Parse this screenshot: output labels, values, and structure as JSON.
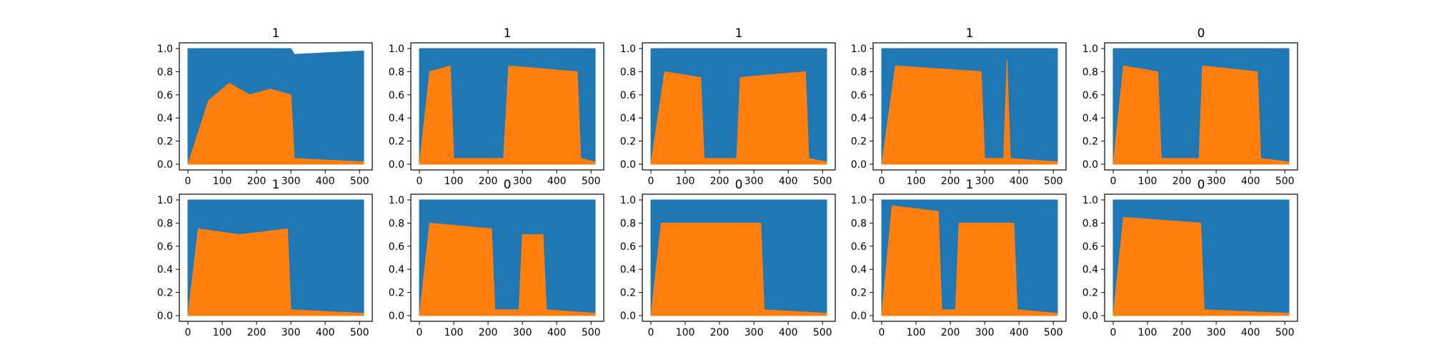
{
  "chart_data": [
    {
      "type": "area",
      "title": "1",
      "xlim": [
        0,
        512
      ],
      "ylim": [
        0,
        1
      ],
      "xticks": [
        "0",
        "100",
        "200",
        "300",
        "400",
        "500"
      ],
      "yticks": [
        "0.0",
        "0.2",
        "0.4",
        "0.6",
        "0.8",
        "1.0"
      ],
      "series": [
        {
          "color": "#ff7f0e",
          "points": [
            [
              0,
              0.0
            ],
            [
              60,
              0.55
            ],
            [
              120,
              0.7
            ],
            [
              180,
              0.6
            ],
            [
              240,
              0.65
            ],
            [
              300,
              0.6
            ],
            [
              310,
              0.05
            ],
            [
              512,
              0.02
            ]
          ]
        },
        {
          "color": "#1f77b4",
          "points": [
            [
              0,
              1.0
            ],
            [
              300,
              1.0
            ],
            [
              310,
              0.95
            ],
            [
              512,
              0.98
            ]
          ]
        }
      ]
    },
    {
      "type": "area",
      "title": "1",
      "xlim": [
        0,
        512
      ],
      "ylim": [
        0,
        1
      ],
      "xticks": [
        "0",
        "100",
        "200",
        "300",
        "400",
        "500"
      ],
      "yticks": [
        "0.0",
        "0.2",
        "0.4",
        "0.6",
        "0.8",
        "1.0"
      ],
      "series": [
        {
          "color": "#ff7f0e",
          "points": [
            [
              0,
              0.0
            ],
            [
              30,
              0.8
            ],
            [
              90,
              0.85
            ],
            [
              100,
              0.05
            ],
            [
              245,
              0.05
            ],
            [
              260,
              0.85
            ],
            [
              460,
              0.8
            ],
            [
              470,
              0.05
            ],
            [
              512,
              0.02
            ]
          ]
        },
        {
          "color": "#1f77b4",
          "points": [
            [
              0,
              1.0
            ],
            [
              512,
              1.0
            ]
          ]
        }
      ]
    },
    {
      "type": "area",
      "title": "1",
      "xlim": [
        0,
        512
      ],
      "ylim": [
        0,
        1
      ],
      "xticks": [
        "0",
        "100",
        "200",
        "300",
        "400",
        "500"
      ],
      "yticks": [
        "0.0",
        "0.2",
        "0.4",
        "0.6",
        "0.8",
        "1.0"
      ],
      "series": [
        {
          "color": "#ff7f0e",
          "points": [
            [
              0,
              0.0
            ],
            [
              40,
              0.8
            ],
            [
              145,
              0.75
            ],
            [
              155,
              0.05
            ],
            [
              250,
              0.05
            ],
            [
              260,
              0.75
            ],
            [
              450,
              0.8
            ],
            [
              460,
              0.05
            ],
            [
              512,
              0.02
            ]
          ]
        },
        {
          "color": "#1f77b4",
          "points": [
            [
              0,
              1.0
            ],
            [
              512,
              1.0
            ]
          ]
        }
      ]
    },
    {
      "type": "area",
      "title": "1",
      "xlim": [
        0,
        512
      ],
      "ylim": [
        0,
        1
      ],
      "xticks": [
        "0",
        "100",
        "200",
        "300",
        "400",
        "500"
      ],
      "yticks": [
        "0.0",
        "0.2",
        "0.4",
        "0.6",
        "0.8",
        "1.0"
      ],
      "series": [
        {
          "color": "#ff7f0e",
          "points": [
            [
              0,
              0.0
            ],
            [
              40,
              0.85
            ],
            [
              290,
              0.8
            ],
            [
              300,
              0.05
            ],
            [
              355,
              0.05
            ],
            [
              365,
              0.9
            ],
            [
              375,
              0.05
            ],
            [
              512,
              0.02
            ]
          ]
        },
        {
          "color": "#1f77b4",
          "points": [
            [
              0,
              1.0
            ],
            [
              512,
              1.0
            ]
          ]
        }
      ]
    },
    {
      "type": "area",
      "title": "0",
      "xlim": [
        0,
        512
      ],
      "ylim": [
        0,
        1
      ],
      "xticks": [
        "0",
        "100",
        "200",
        "300",
        "400",
        "500"
      ],
      "yticks": [
        "0.0",
        "0.2",
        "0.4",
        "0.6",
        "0.8",
        "1.0"
      ],
      "series": [
        {
          "color": "#ff7f0e",
          "points": [
            [
              0,
              0.0
            ],
            [
              30,
              0.85
            ],
            [
              130,
              0.8
            ],
            [
              140,
              0.05
            ],
            [
              250,
              0.05
            ],
            [
              260,
              0.85
            ],
            [
              420,
              0.8
            ],
            [
              430,
              0.05
            ],
            [
              512,
              0.02
            ]
          ]
        },
        {
          "color": "#1f77b4",
          "points": [
            [
              0,
              1.0
            ],
            [
              512,
              1.0
            ]
          ]
        }
      ]
    },
    {
      "type": "area",
      "title": "1",
      "xlim": [
        0,
        512
      ],
      "ylim": [
        0,
        1
      ],
      "xticks": [
        "0",
        "100",
        "200",
        "300",
        "400",
        "500"
      ],
      "yticks": [
        "0.0",
        "0.2",
        "0.4",
        "0.6",
        "0.8",
        "1.0"
      ],
      "series": [
        {
          "color": "#ff7f0e",
          "points": [
            [
              0,
              0.0
            ],
            [
              30,
              0.75
            ],
            [
              150,
              0.7
            ],
            [
              290,
              0.75
            ],
            [
              300,
              0.05
            ],
            [
              512,
              0.02
            ]
          ]
        },
        {
          "color": "#1f77b4",
          "points": [
            [
              0,
              1.0
            ],
            [
              512,
              1.0
            ]
          ]
        }
      ]
    },
    {
      "type": "area",
      "title": "0",
      "xlim": [
        0,
        512
      ],
      "ylim": [
        0,
        1
      ],
      "xticks": [
        "0",
        "100",
        "200",
        "300",
        "400",
        "500"
      ],
      "yticks": [
        "0.0",
        "0.2",
        "0.4",
        "0.6",
        "0.8",
        "1.0"
      ],
      "series": [
        {
          "color": "#ff7f0e",
          "points": [
            [
              0,
              0.0
            ],
            [
              30,
              0.8
            ],
            [
              210,
              0.75
            ],
            [
              220,
              0.05
            ],
            [
              290,
              0.05
            ],
            [
              300,
              0.7
            ],
            [
              360,
              0.7
            ],
            [
              370,
              0.05
            ],
            [
              512,
              0.02
            ]
          ]
        },
        {
          "color": "#1f77b4",
          "points": [
            [
              0,
              1.0
            ],
            [
              512,
              1.0
            ]
          ]
        }
      ]
    },
    {
      "type": "area",
      "title": "0",
      "xlim": [
        0,
        512
      ],
      "ylim": [
        0,
        1
      ],
      "xticks": [
        "0",
        "100",
        "200",
        "300",
        "400",
        "500"
      ],
      "yticks": [
        "0.0",
        "0.2",
        "0.4",
        "0.6",
        "0.8",
        "1.0"
      ],
      "series": [
        {
          "color": "#ff7f0e",
          "points": [
            [
              0,
              0.0
            ],
            [
              30,
              0.8
            ],
            [
              320,
              0.8
            ],
            [
              330,
              0.05
            ],
            [
              512,
              0.02
            ]
          ]
        },
        {
          "color": "#1f77b4",
          "points": [
            [
              0,
              1.0
            ],
            [
              512,
              1.0
            ]
          ]
        }
      ]
    },
    {
      "type": "area",
      "title": "1",
      "xlim": [
        0,
        512
      ],
      "ylim": [
        0,
        1
      ],
      "xticks": [
        "0",
        "100",
        "200",
        "300",
        "400",
        "500"
      ],
      "yticks": [
        "0.0",
        "0.2",
        "0.4",
        "0.6",
        "0.8",
        "1.0"
      ],
      "series": [
        {
          "color": "#ff7f0e",
          "points": [
            [
              0,
              0.0
            ],
            [
              30,
              0.95
            ],
            [
              165,
              0.9
            ],
            [
              175,
              0.05
            ],
            [
              215,
              0.05
            ],
            [
              225,
              0.8
            ],
            [
              385,
              0.8
            ],
            [
              395,
              0.05
            ],
            [
              512,
              0.02
            ]
          ]
        },
        {
          "color": "#1f77b4",
          "points": [
            [
              0,
              1.0
            ],
            [
              512,
              1.0
            ]
          ]
        }
      ]
    },
    {
      "type": "area",
      "title": "0",
      "xlim": [
        0,
        512
      ],
      "ylim": [
        0,
        1
      ],
      "xticks": [
        "0",
        "100",
        "200",
        "300",
        "400",
        "500"
      ],
      "yticks": [
        "0.0",
        "0.2",
        "0.4",
        "0.6",
        "0.8",
        "1.0"
      ],
      "series": [
        {
          "color": "#ff7f0e",
          "points": [
            [
              0,
              0.0
            ],
            [
              30,
              0.85
            ],
            [
              255,
              0.8
            ],
            [
              265,
              0.05
            ],
            [
              512,
              0.02
            ]
          ]
        },
        {
          "color": "#1f77b4",
          "points": [
            [
              0,
              1.0
            ],
            [
              512,
              1.0
            ]
          ]
        }
      ]
    }
  ]
}
